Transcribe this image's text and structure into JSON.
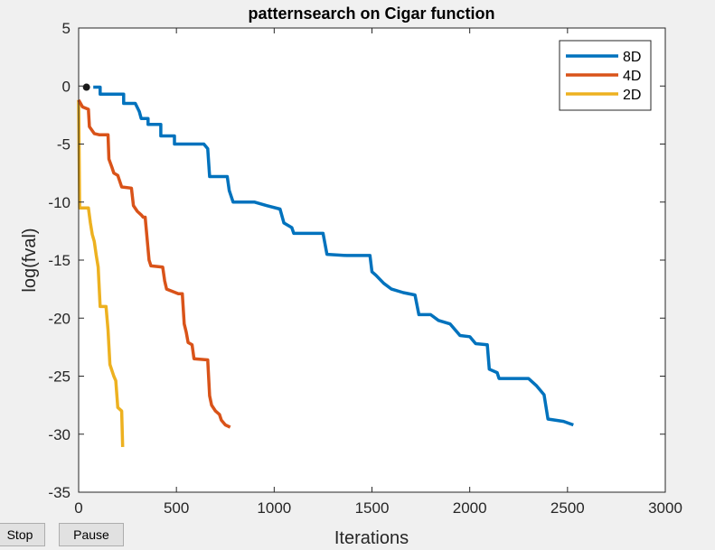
{
  "chart_data": {
    "type": "line",
    "title": "patternsearch on Cigar function",
    "xlabel": "Iterations",
    "ylabel": "log(fval)",
    "xlim": [
      0,
      3000
    ],
    "ylim": [
      -35,
      5
    ],
    "xticks": [
      0,
      500,
      1000,
      1500,
      2000,
      2500,
      3000
    ],
    "yticks": [
      5,
      0,
      -5,
      -10,
      -15,
      -20,
      -25,
      -30,
      -35
    ],
    "grid": false,
    "legend_position": "top-right",
    "series": [
      {
        "name": "8D",
        "color": "#0072bd",
        "points": [
          [
            75,
            -0.1
          ],
          [
            110,
            -0.1
          ],
          [
            110,
            -0.7
          ],
          [
            230,
            -0.7
          ],
          [
            230,
            -1.5
          ],
          [
            290,
            -1.5
          ],
          [
            310,
            -2.2
          ],
          [
            320,
            -2.8
          ],
          [
            355,
            -2.8
          ],
          [
            355,
            -3.3
          ],
          [
            420,
            -3.3
          ],
          [
            420,
            -4.3
          ],
          [
            490,
            -4.3
          ],
          [
            490,
            -5.0
          ],
          [
            640,
            -5.0
          ],
          [
            660,
            -5.4
          ],
          [
            670,
            -7.8
          ],
          [
            760,
            -7.8
          ],
          [
            770,
            -9.0
          ],
          [
            790,
            -10.0
          ],
          [
            900,
            -10.0
          ],
          [
            960,
            -10.3
          ],
          [
            1030,
            -10.6
          ],
          [
            1050,
            -11.8
          ],
          [
            1090,
            -12.2
          ],
          [
            1100,
            -12.7
          ],
          [
            1160,
            -12.7
          ],
          [
            1250,
            -12.7
          ],
          [
            1270,
            -14.5
          ],
          [
            1370,
            -14.6
          ],
          [
            1490,
            -14.6
          ],
          [
            1500,
            -16.0
          ],
          [
            1520,
            -16.3
          ],
          [
            1560,
            -17.0
          ],
          [
            1600,
            -17.5
          ],
          [
            1660,
            -17.8
          ],
          [
            1720,
            -18.0
          ],
          [
            1740,
            -19.7
          ],
          [
            1800,
            -19.7
          ],
          [
            1840,
            -20.2
          ],
          [
            1900,
            -20.5
          ],
          [
            1950,
            -21.5
          ],
          [
            2000,
            -21.6
          ],
          [
            2030,
            -22.2
          ],
          [
            2090,
            -22.3
          ],
          [
            2100,
            -24.4
          ],
          [
            2140,
            -24.7
          ],
          [
            2150,
            -25.2
          ],
          [
            2300,
            -25.2
          ],
          [
            2340,
            -25.8
          ],
          [
            2380,
            -26.6
          ],
          [
            2400,
            -28.7
          ],
          [
            2480,
            -28.9
          ],
          [
            2530,
            -29.2
          ]
        ]
      },
      {
        "name": "4D",
        "color": "#d95319",
        "points": [
          [
            0,
            -1.2
          ],
          [
            20,
            -1.8
          ],
          [
            50,
            -2.0
          ],
          [
            55,
            -3.5
          ],
          [
            80,
            -4.1
          ],
          [
            105,
            -4.2
          ],
          [
            150,
            -4.2
          ],
          [
            155,
            -6.3
          ],
          [
            170,
            -7.0
          ],
          [
            180,
            -7.5
          ],
          [
            200,
            -7.7
          ],
          [
            220,
            -8.7
          ],
          [
            270,
            -8.8
          ],
          [
            280,
            -10.3
          ],
          [
            300,
            -10.8
          ],
          [
            320,
            -11.1
          ],
          [
            330,
            -11.3
          ],
          [
            340,
            -11.3
          ],
          [
            360,
            -15.0
          ],
          [
            370,
            -15.5
          ],
          [
            430,
            -15.6
          ],
          [
            440,
            -16.8
          ],
          [
            450,
            -17.5
          ],
          [
            510,
            -17.9
          ],
          [
            530,
            -17.9
          ],
          [
            540,
            -20.5
          ],
          [
            550,
            -21.2
          ],
          [
            560,
            -22.1
          ],
          [
            580,
            -22.3
          ],
          [
            590,
            -23.5
          ],
          [
            660,
            -23.6
          ],
          [
            670,
            -26.7
          ],
          [
            680,
            -27.5
          ],
          [
            700,
            -28.0
          ],
          [
            720,
            -28.3
          ],
          [
            730,
            -28.8
          ],
          [
            750,
            -29.2
          ],
          [
            775,
            -29.4
          ]
        ]
      },
      {
        "name": "2D",
        "color": "#edb120",
        "points": [
          [
            0,
            -1.2
          ],
          [
            5,
            -10.5
          ],
          [
            50,
            -10.5
          ],
          [
            60,
            -11.8
          ],
          [
            70,
            -12.8
          ],
          [
            80,
            -13.4
          ],
          [
            90,
            -14.6
          ],
          [
            100,
            -15.6
          ],
          [
            110,
            -19.0
          ],
          [
            140,
            -19.0
          ],
          [
            150,
            -21.0
          ],
          [
            160,
            -24.0
          ],
          [
            180,
            -25.0
          ],
          [
            190,
            -25.4
          ],
          [
            200,
            -27.7
          ],
          [
            220,
            -28.0
          ],
          [
            225,
            -31.1
          ]
        ]
      }
    ],
    "marker": {
      "x": 40,
      "y": -0.1,
      "color": "#1a1a1a"
    }
  },
  "controls": {
    "stop_label": "Stop",
    "pause_label": "Pause"
  }
}
